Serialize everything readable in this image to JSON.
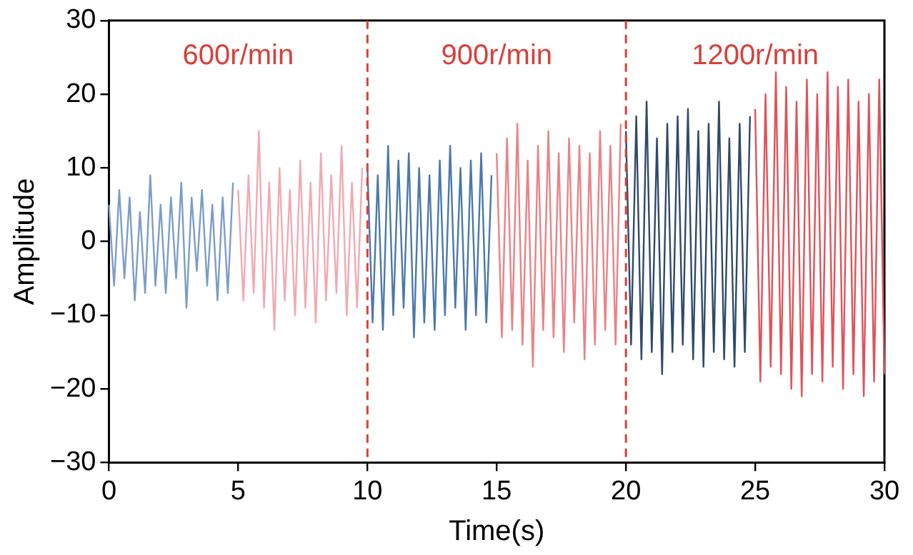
{
  "chart_data": {
    "type": "line",
    "xlabel": "Time(s)",
    "ylabel": "Amplitude",
    "xlim": [
      0,
      30
    ],
    "ylim": [
      -30,
      30
    ],
    "xticks": [
      0,
      5,
      10,
      15,
      20,
      25,
      30
    ],
    "yticks": [
      -30,
      -20,
      -10,
      0,
      10,
      20,
      30
    ],
    "marker": "none",
    "series": [
      {
        "color": "#7b9dc8",
        "x": [
          0,
          0.2,
          0.4,
          0.6,
          0.8,
          1,
          1.2,
          1.4,
          1.6,
          1.8,
          2,
          2.2,
          2.4,
          2.6,
          2.8,
          3,
          3.2,
          3.4,
          3.6,
          3.8,
          4,
          4.2,
          4.4,
          4.6,
          4.8
        ],
        "values": [
          5,
          -6,
          7,
          -5,
          6,
          -8,
          4,
          -7,
          9,
          -6,
          5,
          -7,
          6,
          -5,
          8,
          -9,
          6,
          -4,
          7,
          -6,
          5,
          -8,
          6,
          -7,
          8
        ]
      },
      {
        "color": "#f2a9b0",
        "x": [
          5,
          5.2,
          5.4,
          5.6,
          5.8,
          6,
          6.2,
          6.4,
          6.6,
          6.8,
          7,
          7.2,
          7.4,
          7.6,
          7.8,
          8,
          8.2,
          8.4,
          8.6,
          8.8,
          9,
          9.2,
          9.4,
          9.6,
          9.8
        ],
        "values": [
          7,
          -8,
          9,
          -7,
          15,
          -9,
          8,
          -12,
          10,
          -8,
          7,
          -10,
          11,
          -9,
          8,
          -11,
          12,
          -8,
          9,
          -7,
          13,
          -10,
          8,
          -9,
          10
        ]
      },
      {
        "color": "#4a78aa",
        "x": [
          10,
          10.2,
          10.4,
          10.6,
          10.8,
          11,
          11.2,
          11.4,
          11.6,
          11.8,
          12,
          12.2,
          12.4,
          12.6,
          12.8,
          13,
          13.2,
          13.4,
          13.6,
          13.8,
          14,
          14.2,
          14.4,
          14.6,
          14.8
        ],
        "values": [
          10,
          -11,
          9,
          -12,
          13,
          -10,
          11,
          -9,
          12,
          -13,
          10,
          -11,
          9,
          -12,
          11,
          -10,
          13,
          -9,
          10,
          -12,
          11,
          -10,
          12,
          -11,
          9
        ]
      },
      {
        "color": "#ea8286",
        "x": [
          15,
          15.2,
          15.4,
          15.6,
          15.8,
          16,
          16.2,
          16.4,
          16.6,
          16.8,
          17,
          17.2,
          17.4,
          17.6,
          17.8,
          18,
          18.2,
          18.4,
          18.6,
          18.8,
          19,
          19.2,
          19.4,
          19.6,
          19.8
        ],
        "values": [
          12,
          -13,
          14,
          -12,
          16,
          -14,
          11,
          -17,
          13,
          -12,
          15,
          -13,
          12,
          -15,
          14,
          -11,
          13,
          -16,
          12,
          -14,
          15,
          -12,
          13,
          -14,
          16
        ]
      },
      {
        "color": "#2e4a6a",
        "x": [
          20,
          20.2,
          20.4,
          20.6,
          20.8,
          21,
          21.2,
          21.4,
          21.6,
          21.8,
          22,
          22.2,
          22.4,
          22.6,
          22.8,
          23,
          23.2,
          23.4,
          23.6,
          23.8,
          24,
          24.2,
          24.4,
          24.6,
          24.8
        ],
        "values": [
          15,
          -14,
          17,
          -16,
          19,
          -15,
          14,
          -18,
          16,
          -15,
          17,
          -14,
          18,
          -16,
          15,
          -17,
          16,
          -15,
          19,
          -16,
          14,
          -17,
          16,
          -15,
          17
        ]
      },
      {
        "color": "#e0525a",
        "x": [
          25,
          25.2,
          25.4,
          25.6,
          25.8,
          26,
          26.2,
          26.4,
          26.6,
          26.8,
          27,
          27.2,
          27.4,
          27.6,
          27.8,
          28,
          28.2,
          28.4,
          28.6,
          28.8,
          29,
          29.2,
          29.4,
          29.6,
          29.8,
          30
        ],
        "values": [
          18,
          -19,
          20,
          -17,
          23,
          -18,
          21,
          -20,
          19,
          -21,
          22,
          -18,
          20,
          -19,
          23,
          -17,
          21,
          -20,
          22,
          -18,
          19,
          -21,
          20,
          -19,
          22,
          -18
        ]
      }
    ],
    "ref_lines": [
      {
        "axis": "x",
        "value": 10,
        "color": "#d9403a",
        "line_style": "dashed"
      },
      {
        "axis": "x",
        "value": 20,
        "color": "#d9403a",
        "line_style": "dashed"
      }
    ],
    "annotations": [
      "600r/min",
      "900r/min",
      "1200r/min"
    ]
  }
}
